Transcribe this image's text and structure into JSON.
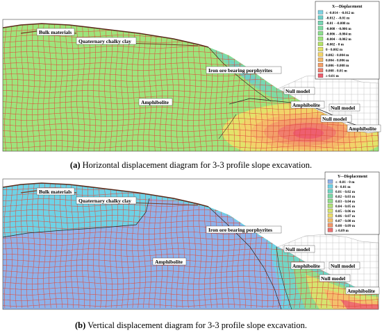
{
  "panel_a": {
    "caption_prefix": "(a)",
    "caption_text": " Horizontal displacement diagram for 3-3 profile slope excavation.",
    "legend_title": "X---Displacement",
    "legend": [
      {
        "label": "≤ -0.014 - -0.012 m",
        "color": "#7fd3e3"
      },
      {
        "label": "-0.012 - -0.01 m",
        "color": "#6fcfc8"
      },
      {
        "label": "-0.01 - -0.008 m",
        "color": "#78d6b4"
      },
      {
        "label": "-0.008 - -0.006 m",
        "color": "#7fdca2"
      },
      {
        "label": "-0.006 - -0.004 m",
        "color": "#8de08e"
      },
      {
        "label": "-0.004 - -0.002 m",
        "color": "#9ee47c"
      },
      {
        "label": "-0.002 - 0 m",
        "color": "#b5e36a"
      },
      {
        "label": "0 - 0.002 m",
        "color": "#e3e36a"
      },
      {
        "label": "0.002 - 0.004 m",
        "color": "#f2d36a"
      },
      {
        "label": "0.004 - 0.006 m",
        "color": "#f5bb6a"
      },
      {
        "label": "0.006 - 0.008 m",
        "color": "#f3a06a"
      },
      {
        "label": "0.008 - 0.01 m",
        "color": "#f07f6e"
      },
      {
        "label": "≥ 0.01 m",
        "color": "#ee5f70"
      }
    ],
    "labels": {
      "bulk": "Bulk materials",
      "clay": "Quaternary chalky clay",
      "porph": "Iron ore bearing porphyrites",
      "amph_left": "Amphibolite",
      "null1": "Null model",
      "amph_mid": "Amphibolite",
      "null2": "Null model",
      "null3": "Null model",
      "amph_right": "Amphibolite"
    }
  },
  "panel_b": {
    "caption_prefix": "(b)",
    "caption_text": " Vertical displacement diagram for 3-3 profile slope excavation.",
    "legend_title": "Y---Displacement",
    "legend": [
      {
        "label": "≤ -0.01 - 0 m",
        "color": "#8fb2ea"
      },
      {
        "label": "0 - 0.01 m",
        "color": "#6ed2e6"
      },
      {
        "label": "0.01 - 0.02 m",
        "color": "#72d6c4"
      },
      {
        "label": "0.02 - 0.03 m",
        "color": "#7ddaa6"
      },
      {
        "label": "0.03 - 0.04 m",
        "color": "#93de8c"
      },
      {
        "label": "0.04 - 0.05 m",
        "color": "#b3e27a"
      },
      {
        "label": "0.05 - 0.06 m",
        "color": "#d6e470"
      },
      {
        "label": "0.06 - 0.07 m",
        "color": "#eedc6c"
      },
      {
        "label": "0.07 - 0.08 m",
        "color": "#f4c06c"
      },
      {
        "label": "0.08 - 0.09 m",
        "color": "#f39a6c"
      },
      {
        "label": "≥ 0.09 m",
        "color": "#ee6f70"
      }
    ],
    "labels": {
      "bulk": "Bulk materials",
      "clay": "Quaternary chalky clay",
      "porph": "Iron ore bearing porphyrites",
      "amph_left": "Amphibolite",
      "null1": "Null model",
      "amph_mid": "Amphibolite",
      "null2": "Null model",
      "null3": "Null model",
      "amph_right": "Amphibolite"
    }
  }
}
